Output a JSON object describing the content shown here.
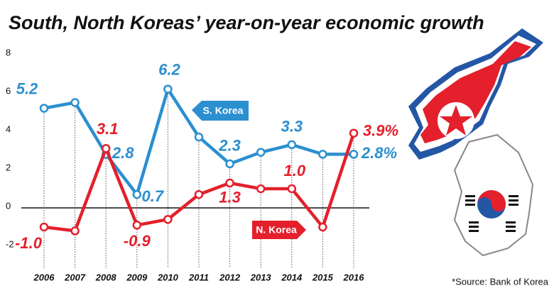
{
  "chart_data": {
    "type": "line",
    "title": "South, North Koreas’ year-on-year economic growth",
    "source": "*Source: Bank of Korea",
    "categories": [
      "2006",
      "2007",
      "2008",
      "2009",
      "2010",
      "2011",
      "2012",
      "2013",
      "2014",
      "2015",
      "2016"
    ],
    "series": [
      {
        "name": "S. Korea",
        "color": "#2b8fd0",
        "values": [
          5.2,
          5.5,
          2.8,
          0.7,
          6.2,
          3.7,
          2.3,
          2.9,
          3.3,
          2.8,
          2.8
        ],
        "value_labels": [
          "5.2",
          null,
          "2.8",
          "0.7",
          "6.2",
          null,
          "2.3",
          null,
          "3.3",
          null,
          "2.8%"
        ]
      },
      {
        "name": "N. Korea",
        "color": "#e3202b",
        "values": [
          -1.0,
          -1.2,
          3.1,
          -0.9,
          -0.6,
          0.7,
          1.3,
          1.0,
          1.0,
          -1.0,
          3.9
        ],
        "value_labels": [
          "-1.0",
          null,
          "3.1",
          "-0.9",
          null,
          null,
          "1.3",
          null,
          "1.0",
          null,
          "3.9%"
        ]
      }
    ],
    "ylim": [
      -3,
      8.5
    ],
    "yticks": [
      -2,
      0,
      2,
      4,
      6,
      8
    ],
    "grid": true
  }
}
